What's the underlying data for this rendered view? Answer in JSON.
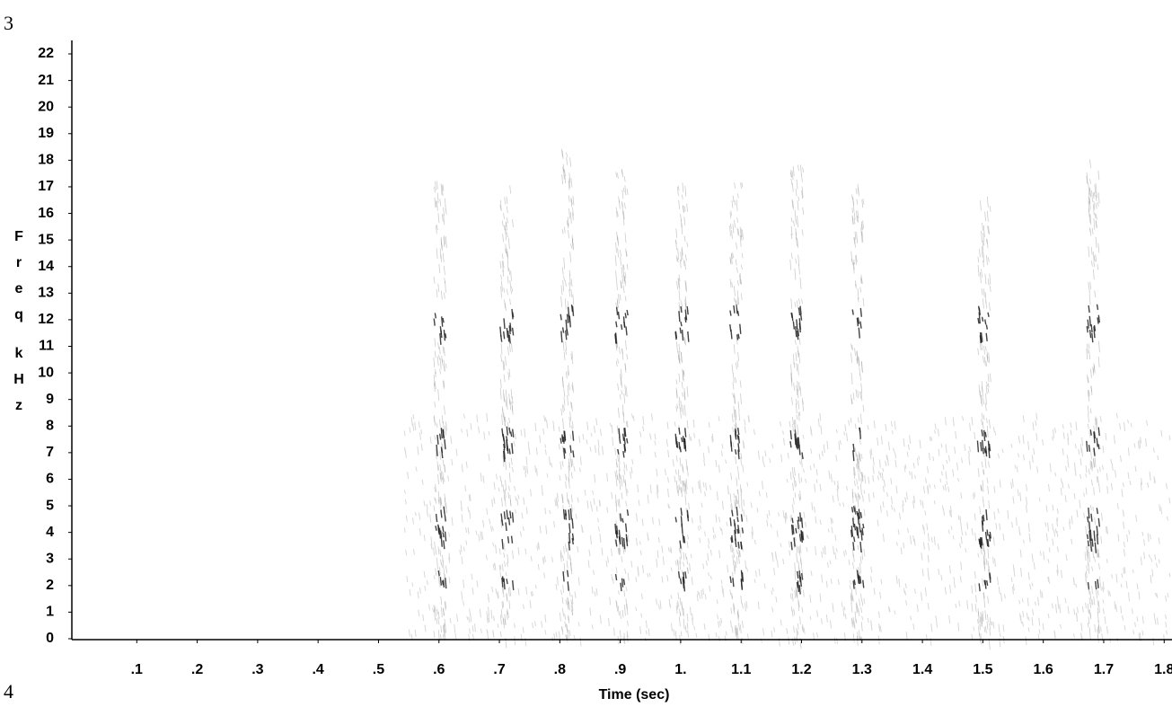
{
  "page_numbers": {
    "top": "3",
    "bottom": "4"
  },
  "chart_data": {
    "type": "spectrogram",
    "xlabel": "Time (sec)",
    "ylabel": "Freq kHz",
    "xlim": [
      0,
      1.81
    ],
    "ylim": [
      0,
      22
    ],
    "xticks": [
      {
        "value": 0.1,
        "label": ".1"
      },
      {
        "value": 0.2,
        "label": ".2"
      },
      {
        "value": 0.3,
        "label": ".3"
      },
      {
        "value": 0.4,
        "label": ".4"
      },
      {
        "value": 0.5,
        "label": ".5"
      },
      {
        "value": 0.6,
        "label": ".6"
      },
      {
        "value": 0.7,
        "label": ".7"
      },
      {
        "value": 0.8,
        "label": ".8"
      },
      {
        "value": 0.9,
        "label": ".9"
      },
      {
        "value": 1.0,
        "label": "1."
      },
      1.1,
      1.2,
      1.3,
      1.4,
      1.5,
      1.6,
      1.7,
      1.8
    ],
    "yticks": [
      0,
      1,
      2,
      3,
      4,
      5,
      6,
      7,
      8,
      9,
      10,
      11,
      12,
      13,
      14,
      15,
      16,
      17,
      18,
      19,
      20,
      21,
      22
    ],
    "x": [
      0.6,
      0.71,
      0.81,
      0.9,
      1.0,
      1.09,
      1.19,
      1.29,
      1.5,
      1.68
    ],
    "color": "#222222"
  }
}
